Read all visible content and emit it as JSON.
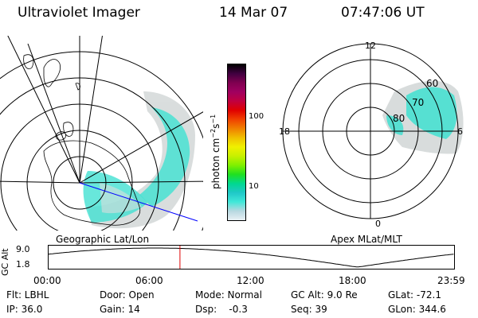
{
  "header": {
    "instrument": "Ultraviolet Imager",
    "date": "14 Mar 07",
    "time": "07:47:06 UT"
  },
  "geo_panel": {
    "title": "Geographic Lat/Lon"
  },
  "apex_panel": {
    "title": "Apex MLat/MLT",
    "mlt_labels": {
      "top": "12",
      "left": "18",
      "right": "6",
      "bottom": "0"
    },
    "lat_labels": [
      "60",
      "70",
      "80"
    ]
  },
  "colorbar": {
    "label_main": "photon cm",
    "label_exp1": "−2",
    "label_mid": "s",
    "label_exp2": "−1",
    "ticks": [
      "100",
      "10"
    ],
    "colors": [
      "#e8f0f4",
      "#b8d8e0",
      "#40e8d8",
      "#20c8c8",
      "#00d890",
      "#20e020",
      "#80f000",
      "#c8f000",
      "#f0f000",
      "#f0c000",
      "#f08000",
      "#f04000",
      "#e00000",
      "#c00040",
      "#a00060",
      "#800050",
      "#400040",
      "#000000"
    ]
  },
  "timeline": {
    "ylabel": "GC Alt",
    "yticks": [
      "9.0",
      "1.8"
    ],
    "xticks": [
      "00:00",
      "06:00",
      "12:00",
      "18:00",
      "23:59"
    ],
    "current_time_hours": 7.785
  },
  "footer": {
    "filter": "Flt: LBHL",
    "ip": "IP: 36.0",
    "door": "Door: Open",
    "gain": "Gain: 14",
    "mode": "Mode: Normal",
    "dsp": "Dsp:    -0.3",
    "gc_alt": "GC Alt: 9.0 Re",
    "seq": "Seq: 39",
    "glat": "GLat: -72.1",
    "glon": "GLon: 344.6"
  }
}
